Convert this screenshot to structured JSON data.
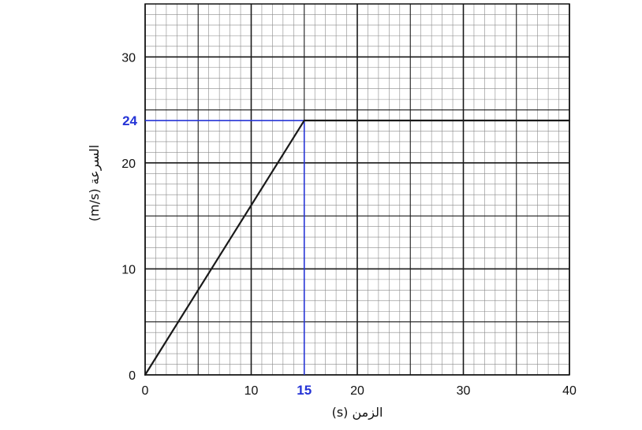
{
  "chart_data": {
    "type": "line",
    "xlabel": "الزمن (s)",
    "ylabel": "السرعة (m/s)",
    "xlim": [
      0,
      40
    ],
    "ylim": [
      0,
      35
    ],
    "x_ticks": [
      "0",
      "10",
      "20",
      "30",
      "40"
    ],
    "y_ticks": [
      "0",
      "10",
      "20",
      "30"
    ],
    "grid": true,
    "series": [
      {
        "x": [
          0,
          15,
          40
        ],
        "y": [
          0,
          24,
          24
        ],
        "color": "#1a1a1a"
      }
    ],
    "highlight": {
      "x": 15,
      "y": 24,
      "x_label": "15",
      "y_label": "24",
      "color": "#2433d6"
    }
  }
}
